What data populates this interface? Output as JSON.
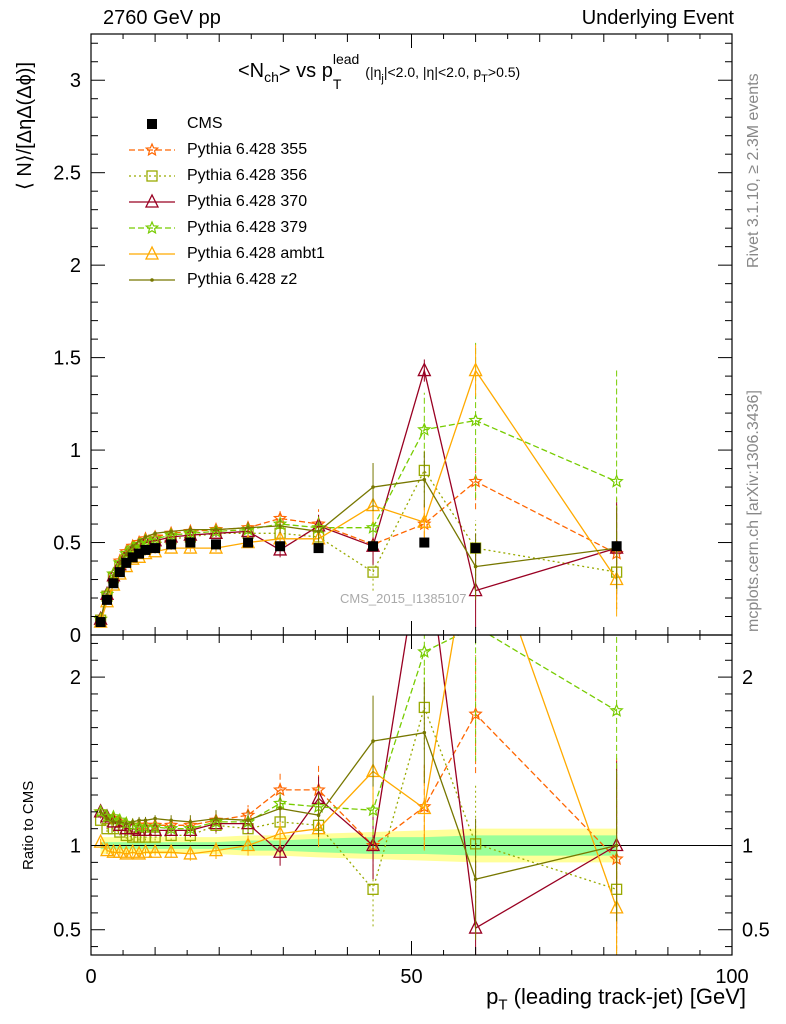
{
  "header": {
    "left": "2760 GeV pp",
    "right": "Underlying Event"
  },
  "side_labels": {
    "rivet": "Rivet 3.1.10, ≥ 2.3M events",
    "mcplots": "mcplots.cern.ch [arXiv:1306.3436]"
  },
  "plot_title": {
    "main": "<N",
    "sub_ch": "ch",
    "vs": "> vs p",
    "sub_T": "T",
    "sup_lead": "lead",
    "cuts_open": " (|η",
    "cuts_j": "j",
    "cuts_rest": "|<2.0, |η|<2.0, p",
    "cuts_T": "T",
    "cuts_end": ">0.5)"
  },
  "watermark": "CMS_2015_I1385107",
  "chart_data": [
    {
      "type": "line",
      "panel": "main",
      "ylabel": "⟨ N⟩/[ΔηΔ(Δϕ)]",
      "xlim": [
        0,
        100
      ],
      "ylim": [
        0,
        3.25
      ],
      "y_ticks": [
        0,
        0.5,
        1,
        1.5,
        2,
        2.5,
        3
      ],
      "y_tick_labels": [
        "0",
        "0.5",
        "1",
        "1.5",
        "2",
        "2.5",
        "3"
      ],
      "x": [
        1.5,
        2.5,
        3.5,
        4.5,
        5.5,
        6.5,
        7.5,
        8.5,
        10,
        12.5,
        15.5,
        19.5,
        24.5,
        29.5,
        35.5,
        44,
        52,
        60,
        82
      ],
      "series": [
        {
          "name": "CMS",
          "color": "#000000",
          "marker": "filled-square",
          "line": "none",
          "values": [
            0.07,
            0.19,
            0.28,
            0.34,
            0.39,
            0.42,
            0.44,
            0.46,
            0.47,
            0.49,
            0.5,
            0.49,
            0.5,
            0.48,
            0.47,
            0.48,
            0.5,
            0.47,
            0.48
          ],
          "errors": [
            0.005,
            0.01,
            0.01,
            0.01,
            0.01,
            0.01,
            0.01,
            0.01,
            0.01,
            0.01,
            0.01,
            0.01,
            0.01,
            0.015,
            0.02,
            0.02,
            0.02,
            0.02,
            0.02
          ]
        },
        {
          "name": "Pythia 6.428 355",
          "color": "#ff6600",
          "marker": "star",
          "line": "dashed",
          "values": [
            0.085,
            0.22,
            0.33,
            0.4,
            0.45,
            0.48,
            0.5,
            0.52,
            0.53,
            0.55,
            0.56,
            0.57,
            0.58,
            0.63,
            0.6,
            0.49,
            0.6,
            0.83,
            0.44
          ],
          "errors": [
            0.005,
            0.01,
            0.01,
            0.01,
            0.01,
            0.01,
            0.01,
            0.01,
            0.01,
            0.01,
            0.02,
            0.02,
            0.03,
            0.04,
            0.08,
            0.1,
            0.12,
            0.15,
            0.3
          ]
        },
        {
          "name": "Pythia 6.428 356",
          "color": "#99aa00",
          "marker": "open-square",
          "line": "dotted",
          "values": [
            0.08,
            0.21,
            0.31,
            0.37,
            0.41,
            0.44,
            0.46,
            0.48,
            0.49,
            0.52,
            0.53,
            0.55,
            0.55,
            0.55,
            0.53,
            0.34,
            0.89,
            0.47,
            0.34
          ],
          "errors": [
            0.005,
            0.01,
            0.01,
            0.01,
            0.01,
            0.01,
            0.01,
            0.01,
            0.01,
            0.01,
            0.02,
            0.02,
            0.03,
            0.04,
            0.05,
            0.1,
            0.12,
            0.15,
            0.2
          ]
        },
        {
          "name": "Pythia 6.428 370",
          "color": "#990022",
          "marker": "open-triangle",
          "line": "solid",
          "values": [
            0.085,
            0.22,
            0.32,
            0.38,
            0.43,
            0.46,
            0.48,
            0.5,
            0.51,
            0.53,
            0.54,
            0.55,
            0.56,
            0.46,
            0.59,
            0.48,
            1.43,
            0.24,
            0.47
          ],
          "errors": [
            0.005,
            0.01,
            0.01,
            0.01,
            0.01,
            0.01,
            0.01,
            0.01,
            0.01,
            0.01,
            0.02,
            0.02,
            0.03,
            0.04,
            0.06,
            0.1,
            0.06,
            0.2,
            0.25
          ]
        },
        {
          "name": "Pythia 6.428 379",
          "color": "#77cc00",
          "marker": "star",
          "line": "dashed",
          "values": [
            0.085,
            0.22,
            0.33,
            0.39,
            0.44,
            0.47,
            0.49,
            0.51,
            0.52,
            0.54,
            0.55,
            0.56,
            0.57,
            0.6,
            0.58,
            0.58,
            1.11,
            1.16,
            0.83
          ],
          "errors": [
            0.005,
            0.01,
            0.01,
            0.01,
            0.01,
            0.01,
            0.01,
            0.01,
            0.01,
            0.01,
            0.02,
            0.02,
            0.03,
            0.04,
            0.06,
            0.1,
            0.2,
            0.42,
            0.6
          ]
        },
        {
          "name": "Pythia 6.428 ambt1",
          "color": "#ffaa00",
          "marker": "open-triangle",
          "line": "solid",
          "values": [
            0.07,
            0.18,
            0.27,
            0.33,
            0.37,
            0.41,
            0.42,
            0.44,
            0.45,
            0.47,
            0.47,
            0.47,
            0.5,
            0.52,
            0.52,
            0.7,
            0.61,
            1.43,
            0.3
          ],
          "errors": [
            0.005,
            0.01,
            0.01,
            0.01,
            0.01,
            0.01,
            0.01,
            0.01,
            0.01,
            0.01,
            0.02,
            0.02,
            0.03,
            0.04,
            0.05,
            0.1,
            0.12,
            0.14,
            0.2
          ]
        },
        {
          "name": "Pythia 6.428 z2",
          "color": "#777700",
          "marker": "small-dot",
          "line": "solid",
          "values": [
            0.085,
            0.22,
            0.32,
            0.39,
            0.44,
            0.48,
            0.51,
            0.53,
            0.55,
            0.56,
            0.57,
            0.57,
            0.58,
            0.59,
            0.56,
            0.8,
            0.84,
            0.37,
            0.47
          ],
          "errors": [
            0.005,
            0.01,
            0.01,
            0.01,
            0.01,
            0.01,
            0.01,
            0.01,
            0.01,
            0.01,
            0.02,
            0.02,
            0.03,
            0.04,
            0.06,
            0.13,
            0.15,
            0.18,
            0.22
          ]
        }
      ]
    },
    {
      "type": "line",
      "panel": "ratio",
      "ylabel": "Ratio to CMS",
      "xlabel_main": "p",
      "xlabel_sub": "T",
      "xlabel_rest": " (leading track-jet) [GeV]",
      "xlim": [
        0,
        100
      ],
      "ylim": [
        0.35,
        2.25
      ],
      "x_ticks": [
        0,
        50,
        100
      ],
      "x_tick_labels": [
        "0",
        "50",
        "100"
      ],
      "y_ticks": [
        0.5,
        1,
        2
      ],
      "y_tick_labels": [
        "0.5",
        "1",
        "2"
      ],
      "x": [
        1.5,
        2.5,
        3.5,
        4.5,
        5.5,
        6.5,
        7.5,
        8.5,
        10,
        12.5,
        15.5,
        19.5,
        24.5,
        29.5,
        35.5,
        44,
        52,
        60,
        82
      ],
      "band_inner": [
        0.02,
        0.02,
        0.02,
        0.02,
        0.02,
        0.02,
        0.02,
        0.02,
        0.02,
        0.02,
        0.02,
        0.02,
        0.03,
        0.03,
        0.04,
        0.05,
        0.05,
        0.06,
        0.06
      ],
      "band_outer": [
        0.05,
        0.05,
        0.05,
        0.05,
        0.05,
        0.05,
        0.05,
        0.05,
        0.05,
        0.05,
        0.05,
        0.05,
        0.06,
        0.06,
        0.07,
        0.08,
        0.09,
        0.1,
        0.1
      ],
      "series": [
        {
          "name": "Pythia 6.428 355",
          "color": "#ff6600",
          "marker": "star",
          "line": "dashed",
          "values": [
            1.2,
            1.17,
            1.16,
            1.14,
            1.13,
            1.12,
            1.12,
            1.12,
            1.12,
            1.12,
            1.12,
            1.15,
            1.18,
            1.33,
            1.33,
            1.0,
            1.23,
            1.78,
            0.92
          ],
          "errors": [
            0.02,
            0.02,
            0.02,
            0.02,
            0.02,
            0.02,
            0.02,
            0.02,
            0.02,
            0.03,
            0.04,
            0.05,
            0.06,
            0.1,
            0.16,
            0.2,
            0.25,
            0.35,
            0.6
          ]
        },
        {
          "name": "Pythia 6.428 356",
          "color": "#99aa00",
          "marker": "open-square",
          "line": "dotted",
          "values": [
            1.15,
            1.1,
            1.1,
            1.08,
            1.06,
            1.05,
            1.05,
            1.05,
            1.05,
            1.06,
            1.06,
            1.12,
            1.1,
            1.14,
            1.12,
            0.74,
            1.82,
            1.01,
            0.74
          ],
          "errors": [
            0.02,
            0.02,
            0.02,
            0.02,
            0.02,
            0.02,
            0.02,
            0.02,
            0.02,
            0.03,
            0.04,
            0.05,
            0.06,
            0.08,
            0.12,
            0.22,
            0.25,
            0.35,
            0.5
          ]
        },
        {
          "name": "Pythia 6.428 370",
          "color": "#990022",
          "marker": "open-triangle",
          "line": "solid",
          "values": [
            1.2,
            1.17,
            1.14,
            1.12,
            1.1,
            1.1,
            1.09,
            1.09,
            1.09,
            1.09,
            1.09,
            1.13,
            1.13,
            0.96,
            1.28,
            1.0,
            2.9,
            0.51,
            1.0
          ],
          "errors": [
            0.02,
            0.02,
            0.02,
            0.02,
            0.02,
            0.02,
            0.02,
            0.02,
            0.02,
            0.03,
            0.04,
            0.05,
            0.06,
            0.08,
            0.13,
            0.2,
            0.15,
            0.4,
            0.5
          ]
        },
        {
          "name": "Pythia 6.428 379",
          "color": "#77cc00",
          "marker": "star",
          "line": "dashed",
          "values": [
            1.2,
            1.17,
            1.17,
            1.15,
            1.13,
            1.12,
            1.11,
            1.11,
            1.11,
            1.1,
            1.1,
            1.14,
            1.14,
            1.25,
            1.23,
            1.21,
            2.15,
            2.3,
            1.8
          ],
          "errors": [
            0.02,
            0.02,
            0.02,
            0.02,
            0.02,
            0.02,
            0.02,
            0.02,
            0.02,
            0.03,
            0.04,
            0.05,
            0.06,
            0.08,
            0.12,
            0.2,
            0.35,
            0.8,
            1.2
          ]
        },
        {
          "name": "Pythia 6.428 ambt1",
          "color": "#ffaa00",
          "marker": "open-triangle",
          "line": "solid",
          "values": [
            1.02,
            0.97,
            0.96,
            0.96,
            0.95,
            0.96,
            0.95,
            0.96,
            0.96,
            0.96,
            0.95,
            0.97,
            1.0,
            1.07,
            1.1,
            1.44,
            1.22,
            3.0,
            0.63
          ],
          "errors": [
            0.02,
            0.02,
            0.02,
            0.02,
            0.02,
            0.02,
            0.02,
            0.02,
            0.02,
            0.03,
            0.04,
            0.05,
            0.06,
            0.08,
            0.11,
            0.2,
            0.25,
            0.3,
            0.4
          ]
        },
        {
          "name": "Pythia 6.428 z2",
          "color": "#777700",
          "marker": "small-dot",
          "line": "solid",
          "values": [
            1.2,
            1.16,
            1.14,
            1.14,
            1.13,
            1.14,
            1.15,
            1.15,
            1.16,
            1.15,
            1.14,
            1.16,
            1.15,
            1.22,
            1.18,
            1.62,
            1.67,
            0.8,
            1.0
          ],
          "errors": [
            0.02,
            0.02,
            0.02,
            0.02,
            0.02,
            0.02,
            0.02,
            0.02,
            0.02,
            0.03,
            0.04,
            0.05,
            0.06,
            0.08,
            0.13,
            0.27,
            0.3,
            0.36,
            0.45
          ]
        }
      ]
    }
  ]
}
